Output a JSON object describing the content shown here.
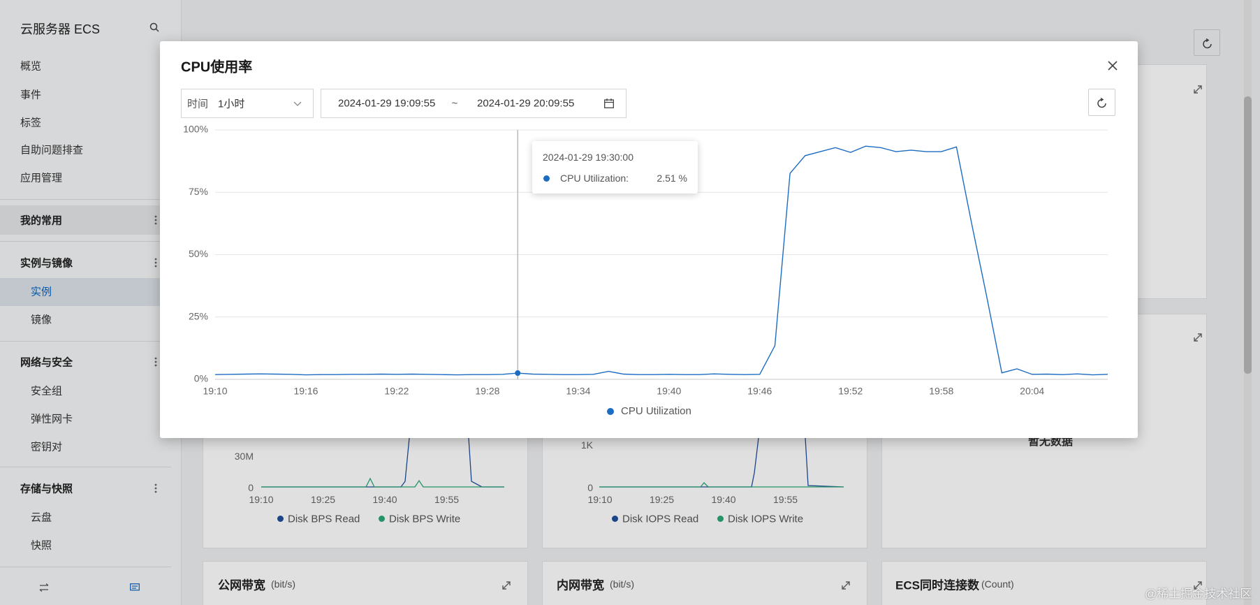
{
  "sidebar": {
    "title": "云服务器 ECS",
    "items": [
      "概览",
      "事件",
      "标签",
      "自助问题排查",
      "应用管理"
    ],
    "groups": [
      {
        "title": "我的常用"
      },
      {
        "title": "实例与镜像",
        "items": [
          "实例",
          "镜像"
        ]
      },
      {
        "title": "网络与安全",
        "items": [
          "安全组",
          "弹性网卡",
          "密钥对"
        ]
      },
      {
        "title": "存储与快照",
        "items": [
          "云盘",
          "快照"
        ]
      }
    ]
  },
  "background": {
    "disk_bps": {
      "yticks": [
        "30M",
        "0"
      ],
      "xticks": [
        "19:10",
        "19:25",
        "19:40",
        "19:55"
      ],
      "legend": [
        "Disk BPS Read",
        "Disk BPS Write"
      ]
    },
    "disk_iops": {
      "yticks": [
        "1K",
        "0"
      ],
      "xticks": [
        "19:10",
        "19:25",
        "19:40",
        "19:55"
      ],
      "legend": [
        "Disk IOPS Read",
        "Disk IOPS Write"
      ]
    },
    "no_data": "暂无数据",
    "cards": [
      {
        "title": "公网带宽",
        "unit": "(bit/s)"
      },
      {
        "title": "内网带宽",
        "unit": "(bit/s)"
      },
      {
        "title": "ECS同时连接数",
        "unit": "(Count)"
      }
    ]
  },
  "watermark": "@稀土掘金技术社区",
  "modal": {
    "title": "CPU使用率",
    "time_label": "时间",
    "time_range": "1小时",
    "start": "2024-01-29 19:09:55",
    "separator": "~",
    "end": "2024-01-29 20:09:55",
    "tooltip": {
      "time": "2024-01-29 19:30:00",
      "label": "CPU Utilization:",
      "value_label": "2.51 %"
    }
  },
  "chart_data": {
    "type": "line",
    "categories": [
      "19:10",
      null,
      null,
      null,
      null,
      null,
      "19:16",
      null,
      null,
      null,
      null,
      null,
      "19:22",
      null,
      null,
      null,
      null,
      null,
      "19:28",
      null,
      null,
      null,
      null,
      null,
      "19:34",
      null,
      null,
      null,
      null,
      null,
      "19:40",
      null,
      null,
      null,
      null,
      null,
      "19:46",
      null,
      null,
      null,
      null,
      null,
      "19:52",
      null,
      null,
      null,
      null,
      null,
      "19:58",
      null,
      null,
      null,
      null,
      null,
      "20:04",
      null,
      null,
      null,
      null,
      null
    ],
    "series": [
      {
        "name": "CPU Utilization",
        "color": "#1c6cc2",
        "values": [
          1.9,
          2.0,
          2.1,
          2.2,
          2.1,
          2.0,
          1.8,
          1.9,
          1.9,
          2.0,
          2.0,
          2.1,
          2.0,
          2.1,
          2.0,
          1.9,
          1.8,
          1.9,
          1.9,
          2.0,
          2.51,
          2.1,
          2.0,
          1.9,
          1.9,
          2.0,
          3.2,
          2.1,
          1.9,
          1.9,
          2.0,
          1.9,
          1.9,
          2.2,
          2.0,
          1.9,
          2.0,
          13.5,
          82.6,
          89.7,
          91.3,
          92.9,
          91.0,
          93.5,
          92.9,
          91.3,
          91.9,
          91.3,
          91.3,
          93.2,
          62.6,
          33.2,
          2.6,
          4.2,
          2.0,
          2.1,
          1.9,
          2.2,
          1.8,
          2.0
        ]
      }
    ],
    "ylim": [
      0,
      100
    ],
    "yticks": [
      {
        "value": 0,
        "label": "0%"
      },
      {
        "value": 25,
        "label": "25%"
      },
      {
        "value": 50,
        "label": "50%"
      },
      {
        "value": 75,
        "label": "75%"
      },
      {
        "value": 100,
        "label": "100%"
      }
    ],
    "grid": true,
    "legend": "bottom"
  }
}
